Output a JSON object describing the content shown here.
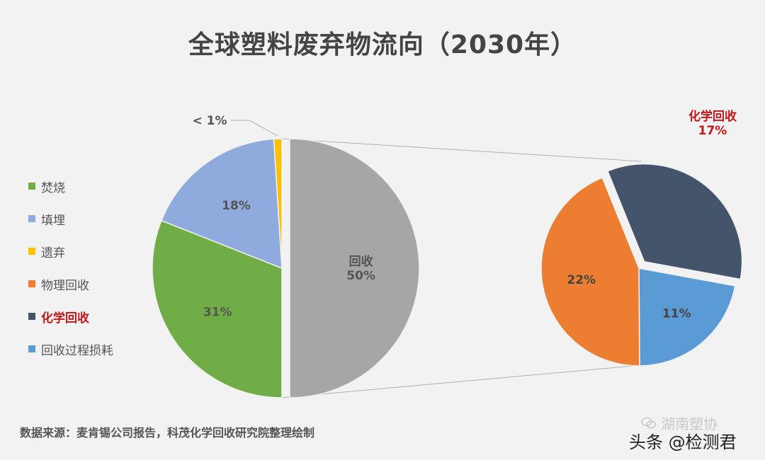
{
  "title": "全球塑料废弃物流向（2030年）",
  "legend": [
    {
      "label": "焚烧",
      "color": "#70ad47",
      "highlight": false
    },
    {
      "label": "填埋",
      "color": "#8faadc",
      "highlight": false
    },
    {
      "label": "遗弃",
      "color": "#ffc000",
      "highlight": false
    },
    {
      "label": "物理回收",
      "color": "#ed7d31",
      "highlight": false
    },
    {
      "label": "化学回收",
      "color": "#44546a",
      "highlight": true
    },
    {
      "label": "回收过程损耗",
      "color": "#5b9bd5",
      "highlight": false
    }
  ],
  "chart_data": [
    {
      "type": "pie",
      "slices": [
        {
          "name": "回收",
          "value": 50,
          "label": "回收\n50%",
          "color": "#a6a6a6"
        },
        {
          "name": "焚烧",
          "value": 31,
          "label": "31%",
          "color": "#70ad47"
        },
        {
          "name": "填埋",
          "value": 18,
          "label": "18%",
          "color": "#8faadc"
        },
        {
          "name": "遗弃",
          "value": 1,
          "label": "< 1%",
          "color": "#ffc000"
        }
      ]
    },
    {
      "type": "pie",
      "slices": [
        {
          "name": "化学回收",
          "value": 17,
          "label": "化学回收\n17%",
          "color": "#44546a",
          "exploded": true
        },
        {
          "name": "回收过程损耗",
          "value": 11,
          "label": "11%",
          "color": "#5b9bd5"
        },
        {
          "name": "物理回收",
          "value": 22,
          "label": "22%",
          "color": "#ed7d31"
        }
      ]
    }
  ],
  "source": "数据来源：麦肯锡公司报告，科茂化学回收研究院整理绘制",
  "watermark": {
    "line1": "湖南塑协",
    "line2": "头条 @检测君"
  }
}
